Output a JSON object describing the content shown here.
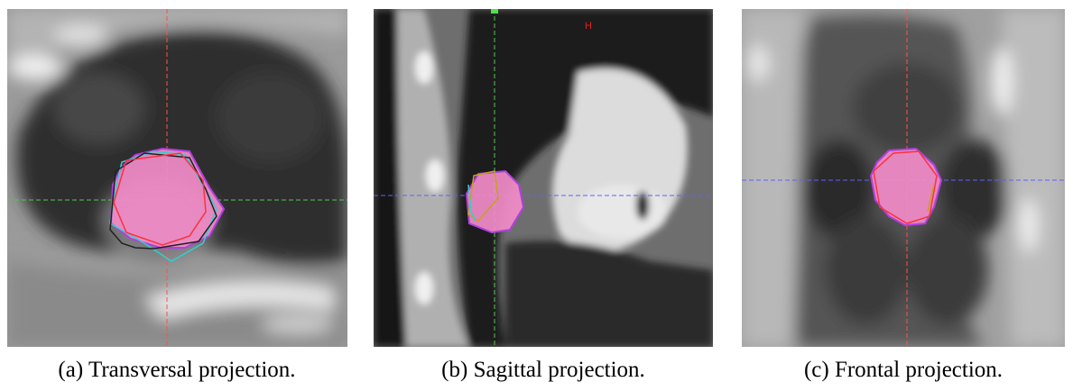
{
  "panels": [
    {
      "caption": "(a) Transversal projection."
    },
    {
      "caption": "(b) Sagittal projection.",
      "label": "H"
    },
    {
      "caption": "(c) Frontal projection."
    }
  ]
}
